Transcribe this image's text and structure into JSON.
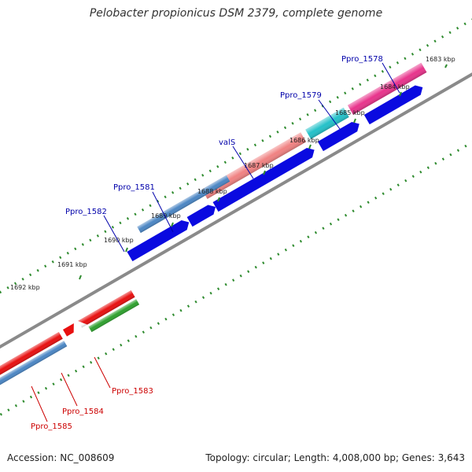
{
  "title": "Pelobacter propionicus DSM 2379, complete genome",
  "footer": {
    "accession": "Accession: NC_008609",
    "summary": "Topology: circular; Length: 4,008,000 bp; Genes: 3,643"
  },
  "scale_labels": [
    "1683 kbp",
    "1684 kbp",
    "1685 kbp",
    "1686 kbp",
    "1687 kbp",
    "1688 kbp",
    "1689 kbp",
    "1690 kbp",
    "1691 kbp",
    "1692 kbp"
  ],
  "genes": [
    {
      "name": "Ppro_1578",
      "color": "#e8348c",
      "strand": "forward"
    },
    {
      "name": "Ppro_1579",
      "color": "#24c1c9",
      "strand": "forward"
    },
    {
      "name": "valS",
      "color": "#f08282",
      "strand": "forward"
    },
    {
      "name": "Ppro_1581",
      "color": "#4b86c4",
      "strand": "forward"
    },
    {
      "name": "Ppro_1582",
      "color": "#4b86c4",
      "strand": "forward"
    },
    {
      "name": "Ppro_1583",
      "color": "#2ea02e",
      "strand": "reverse"
    },
    {
      "name": "Ppro_1584",
      "color": "#e81010",
      "strand": "reverse"
    },
    {
      "name": "Ppro_1585",
      "color": "#e81010",
      "strand": "reverse"
    }
  ],
  "colors": {
    "cds_track": "#0a0ae0",
    "backbone": "#8a8a8a",
    "dots": "#2e8b2e",
    "forward_label": "#0000aa",
    "reverse_label": "#cc0000"
  }
}
